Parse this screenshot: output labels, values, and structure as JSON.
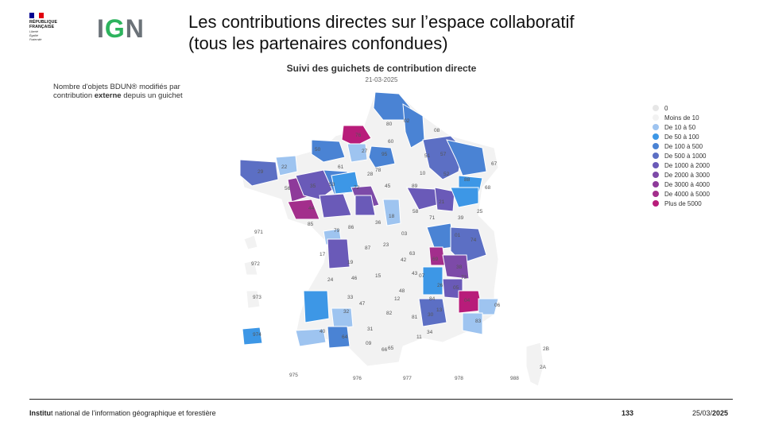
{
  "logo_rf": {
    "lines": [
      "RÉPUBLIQUE",
      "FRANÇAISE"
    ],
    "motto": [
      "Liberté",
      "Égalité",
      "Fraternité"
    ],
    "flag_colors": [
      "#000091",
      "#ffffff",
      "#e1000f"
    ]
  },
  "logo_ign": {
    "prefix": "I",
    "g": "G",
    "suffix": "N"
  },
  "slide_title": {
    "line1": "Les contributions directes sur l’espace collaboratif",
    "line2": "(tous les partenaires confondues)"
  },
  "map": {
    "title": "Suivi des guichets de contribution directe",
    "date": "21-03-2025",
    "note_pre": "Nombre d'objets BDUN® modifiés par contribution ",
    "note_bold": "externe",
    "note_post": " depuis un guichet",
    "legend": [
      {
        "label": "0",
        "color": "#e6e6e6"
      },
      {
        "label": "Moins de 10",
        "color": "#f2f2f2"
      },
      {
        "label": "De 10 à 50",
        "color": "#9ec4f0"
      },
      {
        "label": "De 50 à 100",
        "color": "#3d97e6"
      },
      {
        "label": "De 100 à 500",
        "color": "#4a83d4"
      },
      {
        "label": "De 500 à 1000",
        "color": "#5c6fc4"
      },
      {
        "label": "De 1000 à 2000",
        "color": "#6a5ab8"
      },
      {
        "label": "De 2000 à 3000",
        "color": "#7d4aa8"
      },
      {
        "label": "De 3000 à 4000",
        "color": "#8e3a9a"
      },
      {
        "label": "De 4000 à 5000",
        "color": "#a32e8c"
      },
      {
        "label": "Plus de 5000",
        "color": "#b81c7a"
      }
    ],
    "dept_labels": [
      "80",
      "08",
      "76",
      "60",
      "02",
      "51",
      "50",
      "27",
      "95",
      "57",
      "67",
      "22",
      "61",
      "78",
      "28",
      "10",
      "52",
      "29",
      "56",
      "45",
      "89",
      "88",
      "68",
      "72",
      "53",
      "35",
      "44",
      "85",
      "79",
      "86",
      "36",
      "18",
      "58",
      "21",
      "25",
      "39",
      "03",
      "17",
      "87",
      "23",
      "71",
      "01",
      "74",
      "63",
      "69",
      "38",
      "73",
      "05",
      "04",
      "06",
      "83",
      "84",
      "26",
      "07",
      "42",
      "43",
      "48",
      "30",
      "13",
      "19",
      "15",
      "12",
      "46",
      "24",
      "33",
      "47",
      "82",
      "81",
      "34",
      "11",
      "09",
      "31",
      "32",
      "40",
      "64",
      "65",
      "66",
      "2B",
      "2A",
      "971",
      "972",
      "973",
      "974",
      "975",
      "976",
      "977",
      "978",
      "988"
    ]
  },
  "footer": {
    "org_bold": "Institu",
    "org_rest": "t national de l’information géographique et forestière",
    "page": "133",
    "date_pre": "25/03/",
    "date_bold": "2025"
  }
}
